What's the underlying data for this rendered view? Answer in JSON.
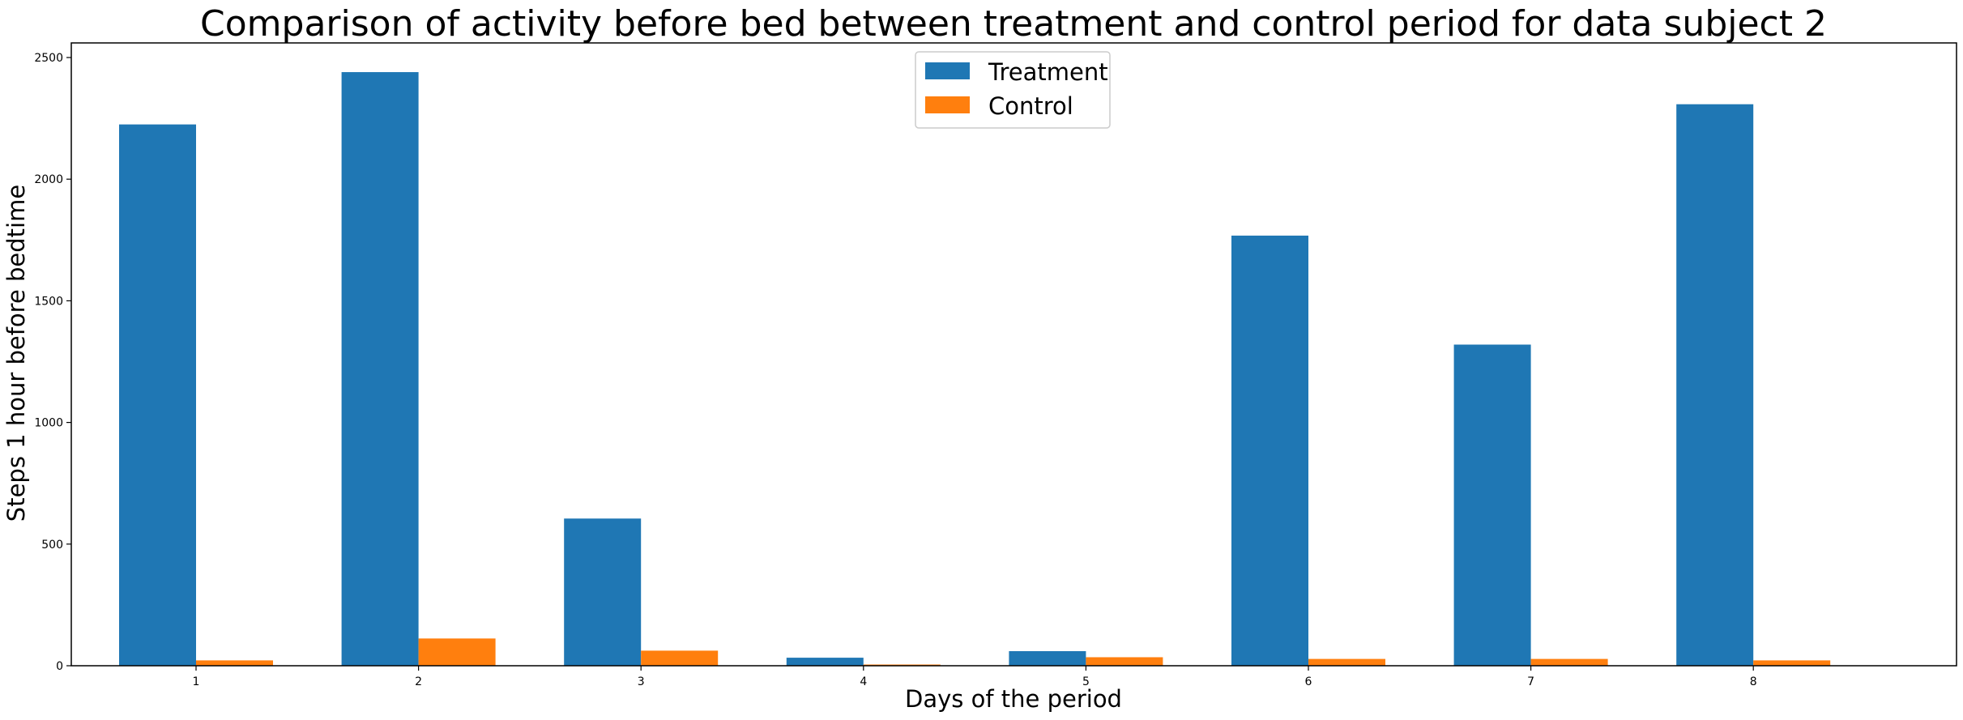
{
  "chart_data": {
    "type": "bar",
    "title": "Comparison of activity before bed between treatment and control period for data subject 2",
    "xlabel": "Days of the period",
    "ylabel": "Steps 1 hour before bedtime",
    "categories": [
      "1",
      "2",
      "3",
      "4",
      "5",
      "6",
      "7",
      "8"
    ],
    "series": [
      {
        "name": "Treatment",
        "color": "#1f77b4",
        "values": [
          2225,
          2440,
          605,
          33,
          60,
          1768,
          1320,
          2308
        ]
      },
      {
        "name": "Control",
        "color": "#ff7f0e",
        "values": [
          22,
          112,
          62,
          5,
          35,
          28,
          28,
          22
        ]
      }
    ],
    "yticks": [
      0,
      500,
      1000,
      1500,
      2000,
      2500
    ],
    "ylim": [
      0,
      2560
    ],
    "grid": false,
    "legend": "upper center"
  }
}
